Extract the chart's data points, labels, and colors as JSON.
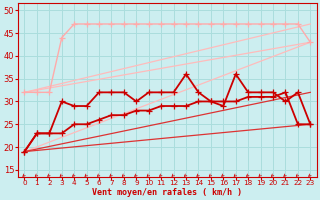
{
  "background_color": "#cceef0",
  "grid_color": "#aadddd",
  "xlabel": "Vent moyen/en rafales ( km/h )",
  "xlabel_color": "#cc0000",
  "tick_color": "#cc0000",
  "x_ticks": [
    0,
    1,
    2,
    3,
    4,
    5,
    6,
    7,
    8,
    9,
    10,
    11,
    12,
    13,
    14,
    15,
    16,
    17,
    18,
    19,
    20,
    21,
    22,
    23
  ],
  "ylim": [
    13.5,
    51.5
  ],
  "yticks": [
    15,
    20,
    25,
    30,
    35,
    40,
    45,
    50
  ],
  "series": [
    {
      "name": "light_diagonal_upper1",
      "color": "#ffbbbb",
      "lw": 0.9,
      "marker": null,
      "x": [
        0,
        23
      ],
      "y": [
        32,
        47
      ]
    },
    {
      "name": "light_diagonal_upper2",
      "color": "#ffbbbb",
      "lw": 0.9,
      "marker": null,
      "x": [
        0,
        23
      ],
      "y": [
        32,
        43
      ]
    },
    {
      "name": "light_diagonal_upper3",
      "color": "#ffbbbb",
      "lw": 0.9,
      "marker": null,
      "x": [
        0,
        23
      ],
      "y": [
        19,
        43
      ]
    },
    {
      "name": "light_stepped_upper_markers",
      "color": "#ffaaaa",
      "lw": 1.0,
      "marker": "+",
      "markersize": 4,
      "x": [
        0,
        1,
        2,
        3,
        4,
        5,
        6,
        7,
        8,
        9,
        10,
        11,
        12,
        13,
        14,
        15,
        16,
        17,
        18,
        19,
        20,
        21,
        22,
        23
      ],
      "y": [
        32,
        32,
        32,
        44,
        47,
        47,
        47,
        47,
        47,
        47,
        47,
        47,
        47,
        47,
        47,
        47,
        47,
        47,
        47,
        47,
        47,
        47,
        47,
        43
      ]
    },
    {
      "name": "red_diagonal_lower1",
      "color": "#dd3333",
      "lw": 0.9,
      "marker": null,
      "x": [
        0,
        23
      ],
      "y": [
        19,
        25
      ]
    },
    {
      "name": "red_diagonal_lower2",
      "color": "#dd3333",
      "lw": 0.9,
      "marker": null,
      "x": [
        0,
        23
      ],
      "y": [
        19,
        32
      ]
    },
    {
      "name": "dark_red_lower_smooth",
      "color": "#cc0000",
      "lw": 1.3,
      "marker": "+",
      "markersize": 4,
      "x": [
        0,
        1,
        2,
        3,
        4,
        5,
        6,
        7,
        8,
        9,
        10,
        11,
        12,
        13,
        14,
        15,
        16,
        17,
        18,
        19,
        20,
        21,
        22,
        23
      ],
      "y": [
        19,
        23,
        23,
        23,
        25,
        25,
        26,
        27,
        27,
        28,
        28,
        29,
        29,
        29,
        30,
        30,
        30,
        30,
        31,
        31,
        31,
        32,
        25,
        25
      ]
    },
    {
      "name": "dark_red_upper_spiky",
      "color": "#cc0000",
      "lw": 1.3,
      "marker": "+",
      "markersize": 4,
      "x": [
        0,
        1,
        2,
        3,
        4,
        5,
        6,
        7,
        8,
        9,
        10,
        11,
        12,
        13,
        14,
        15,
        16,
        17,
        18,
        19,
        20,
        21,
        22,
        23
      ],
      "y": [
        19,
        23,
        23,
        30,
        29,
        29,
        32,
        32,
        32,
        30,
        32,
        32,
        32,
        36,
        32,
        30,
        29,
        36,
        32,
        32,
        32,
        30,
        32,
        25
      ]
    }
  ],
  "arrow_color": "#cc0000"
}
